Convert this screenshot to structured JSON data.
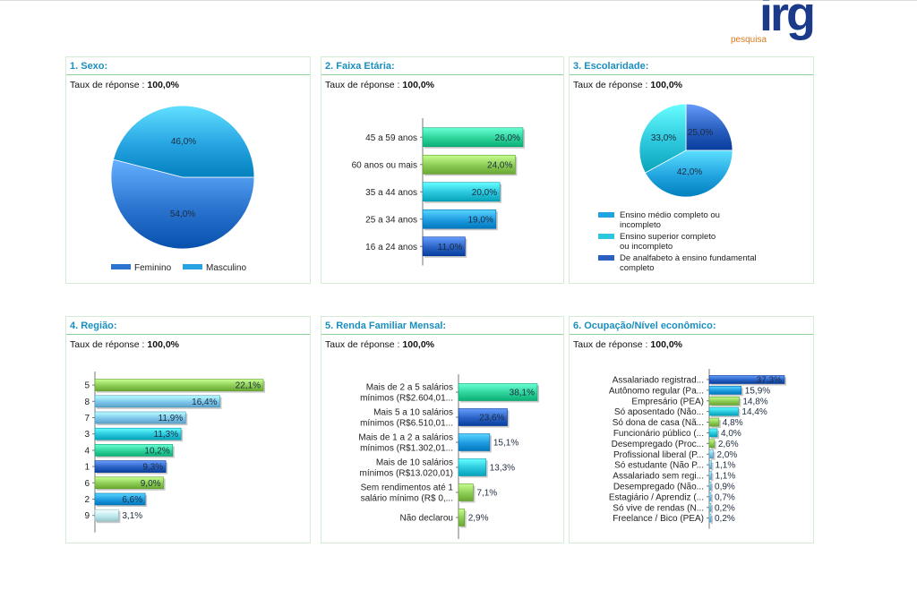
{
  "logo": {
    "text": "irg",
    "sub": "pesquisa"
  },
  "taux_label": "Taux de réponse :",
  "panels": [
    {
      "title": "1. Sexo:",
      "taux_value": "100,0%"
    },
    {
      "title": "2. Faixa Etária:",
      "taux_value": "100,0%"
    },
    {
      "title": "3. Escolaridade:",
      "taux_value": "100,0%"
    },
    {
      "title": "4. Região:",
      "taux_value": "100,0%"
    },
    {
      "title": "5. Renda Familiar Mensal:",
      "taux_value": "100,0%"
    },
    {
      "title": "6. Ocupação/Nível econômico:",
      "taux_value": "100,0%"
    }
  ],
  "colors": {
    "dark_blue": "#2a62c4",
    "mid_blue": "#1e9be0",
    "cyan": "#29c6dc",
    "teal": "#2ed39a",
    "green": "#8ccc55",
    "light_blue": "#7ec6ec",
    "pale_cyan": "#bde9ef"
  },
  "chart_data": [
    {
      "type": "pie",
      "title": "1. Sexo:",
      "slices": [
        {
          "label": "Feminino",
          "value": 54.0,
          "text": "54,0%",
          "color": "#2a74d0"
        },
        {
          "label": "Masculino",
          "value": 46.0,
          "text": "46,0%",
          "color": "#26a4e2"
        }
      ]
    },
    {
      "type": "bar",
      "title": "2. Faixa Etária:",
      "categories": [
        "45 a 59 anos",
        "60 anos ou mais",
        "35 a 44 anos",
        "25 a 34 anos",
        "16 a 24 anos"
      ],
      "values": [
        26.0,
        24.0,
        20.0,
        19.0,
        11.0
      ],
      "labels": [
        "26,0%",
        "24,0%",
        "20,0%",
        "19,0%",
        "11,0%"
      ],
      "colors": [
        "#2ed39a",
        "#8ccc55",
        "#29c6dc",
        "#1e9be0",
        "#2a62c4"
      ]
    },
    {
      "type": "pie",
      "title": "3. Escolaridade:",
      "slices": [
        {
          "label": "De analfabeto à ensino fundamental completo",
          "value": 25.0,
          "text": "25,0%",
          "color": "#2a5fbf"
        },
        {
          "label": "Ensino médio completo ou incompleto",
          "value": 42.0,
          "text": "42,0%",
          "color": "#21a3e0"
        },
        {
          "label": "Ensino superior completo ou incompleto",
          "value": 33.0,
          "text": "33,0%",
          "color": "#2cc7dc"
        }
      ],
      "legend": [
        {
          "lines": [
            "Ensino médio completo ou",
            "incompleto"
          ],
          "color": "#21a3e0"
        },
        {
          "lines": [
            "Ensino superior completo",
            "ou incompleto"
          ],
          "color": "#2cc7dc"
        },
        {
          "lines": [
            "De analfabeto à ensino fundamental",
            "completo"
          ],
          "color": "#2a5fbf"
        }
      ]
    },
    {
      "type": "bar",
      "title": "4. Região:",
      "categories": [
        "5",
        "8",
        "7",
        "3",
        "4",
        "1",
        "6",
        "2",
        "9"
      ],
      "values": [
        22.1,
        16.4,
        11.9,
        11.3,
        10.2,
        9.3,
        9.0,
        6.6,
        3.1
      ],
      "labels": [
        "22,1%",
        "16,4%",
        "11,9%",
        "11,3%",
        "10,2%",
        "9,3%",
        "9,0%",
        "6,6%",
        "3,1%"
      ],
      "colors": [
        "#8ccc55",
        "#7ec6ec",
        "#7ec6ec",
        "#29c6dc",
        "#2ed39a",
        "#2a62c4",
        "#8ccc55",
        "#1e9be0",
        "#bde9ef"
      ]
    },
    {
      "type": "bar",
      "title": "5. Renda Familiar Mensal:",
      "categories": [
        [
          "Mais de 2 a 5 salários",
          "mínimos (R$2.604,01..."
        ],
        [
          "Mais 5 a 10 salários",
          "mínimos (R$6.510,01..."
        ],
        [
          "Mais de 1 a 2 a salários",
          "mínimos (R$1.302,01..."
        ],
        [
          "Mais de 10 salários",
          "mínimos (R$13.020,01)"
        ],
        [
          "Sem rendimentos até 1",
          "salário mínimo (R$ 0,..."
        ],
        [
          "Não declarou"
        ]
      ],
      "values": [
        38.1,
        23.6,
        15.1,
        13.3,
        7.1,
        2.9
      ],
      "labels": [
        "38,1%",
        "23,6%",
        "15,1%",
        "13,3%",
        "7,1%",
        "2,9%"
      ],
      "colors": [
        "#2ed39a",
        "#2a62c4",
        "#1e9be0",
        "#29c6dc",
        "#8ccc55",
        "#8ccc55"
      ]
    },
    {
      "type": "bar",
      "title": "6. Ocupação/Nível econômico:",
      "categories": [
        "Assalariado registrad...",
        "Autônomo regular (Pa...",
        "Empresário (PEA)",
        "Só aposentado (Não...",
        "Só dona de casa (Nã...",
        "Funcionário público (...",
        "Desempregado (Proc...",
        "Profissional liberal (P...",
        "Só estudante (Não P...",
        "Assalariado sem regi...",
        "Desempregado (Não...",
        "Estagiário / Aprendiz (...",
        "Só vive de rendas (N...",
        "Freelance / Bico (PEA)"
      ],
      "values": [
        37.3,
        15.9,
        14.8,
        14.4,
        4.8,
        4.0,
        2.6,
        2.0,
        1.1,
        1.1,
        0.9,
        0.7,
        0.2,
        0.2
      ],
      "labels": [
        "37,3%",
        "15,9%",
        "14,8%",
        "14,4%",
        "4,8%",
        "4,0%",
        "2,6%",
        "2,0%",
        "1,1%",
        "1,1%",
        "0,9%",
        "0,7%",
        "0,2%",
        "0,2%"
      ],
      "colors": [
        "#2a62c4",
        "#1e9be0",
        "#8ccc55",
        "#29c6dc",
        "#8ccc55",
        "#29c6dc",
        "#8ccc55",
        "#7ec6ec",
        "#7ec6ec",
        "#7ec6ec",
        "#7ec6ec",
        "#7ec6ec",
        "#7ec6ec",
        "#7ec6ec"
      ]
    }
  ]
}
